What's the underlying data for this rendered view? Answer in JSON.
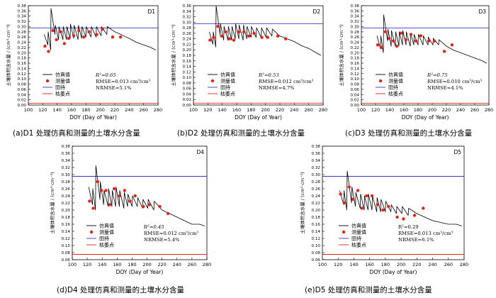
{
  "chart_data": [
    {
      "type": "line",
      "panel_label": "D1",
      "caption": "(a)D1 处理仿真和测量的土壤水分含量",
      "xlabel": "DOY (Day of Year)",
      "ylabel": "土壤体积含水量 / (cm³·cm⁻³)",
      "xlim": [
        100,
        280
      ],
      "ylim": [
        0.0,
        0.38
      ],
      "xticks": [
        100,
        120,
        140,
        160,
        180,
        200,
        220,
        240,
        260,
        280
      ],
      "yticks": [
        0.0,
        0.02,
        0.04,
        0.06,
        0.08,
        0.1,
        0.12,
        0.14,
        0.16,
        0.18,
        0.2,
        0.22,
        0.24,
        0.26,
        0.28,
        0.3,
        0.32,
        0.34,
        0.36,
        0.38
      ],
      "field_capacity": 0.295,
      "wilting_point": 0.007,
      "legend": [
        "仿真值",
        "测量值",
        "田持",
        "枯萎点"
      ],
      "stats": [
        "R²=0.65",
        "RMSE=0.013 cm³/cm³",
        "NRMSE=5.1%"
      ],
      "simulated": {
        "x": [
          122,
          127,
          127.5,
          131,
          131.5,
          137,
          137.5,
          142,
          142.5,
          148,
          148.5,
          153,
          153.5,
          158,
          158.5,
          163,
          163.5,
          169,
          169.5,
          174,
          174.5,
          180,
          180.5,
          187,
          187.5,
          194,
          194.5,
          201,
          201.5,
          209,
          209.5,
          220,
          230,
          240,
          250,
          260,
          270,
          277
        ],
        "y": [
          0.27,
          0.23,
          0.28,
          0.21,
          0.37,
          0.27,
          0.305,
          0.25,
          0.3,
          0.25,
          0.3,
          0.25,
          0.3,
          0.255,
          0.31,
          0.255,
          0.305,
          0.25,
          0.305,
          0.255,
          0.3,
          0.26,
          0.3,
          0.26,
          0.3,
          0.26,
          0.3,
          0.265,
          0.3,
          0.27,
          0.3,
          0.28,
          0.268,
          0.255,
          0.24,
          0.23,
          0.22,
          0.21
        ]
      },
      "measured": {
        "x": [
          123,
          128,
          134,
          139,
          145,
          150,
          156,
          163,
          170,
          177,
          184,
          195,
          203,
          217,
          228
        ],
        "y": [
          0.225,
          0.205,
          0.285,
          0.25,
          0.28,
          0.235,
          0.255,
          0.265,
          0.285,
          0.26,
          0.28,
          0.27,
          0.29,
          0.26,
          0.26
        ]
      }
    },
    {
      "type": "line",
      "panel_label": "D2",
      "caption": "(b)D2 处理仿真和测量的土壤水分含量",
      "xlabel": "DOY (Day of Year)",
      "ylabel": "土壤体积含水量 / (cm³·cm⁻³)",
      "xlim": [
        100,
        280
      ],
      "ylim": [
        0.0,
        0.36
      ],
      "xticks": [
        100,
        120,
        140,
        160,
        180,
        200,
        220,
        240,
        260,
        280
      ],
      "yticks": [
        0.0,
        0.02,
        0.04,
        0.06,
        0.08,
        0.1,
        0.12,
        0.14,
        0.16,
        0.18,
        0.2,
        0.22,
        0.24,
        0.26,
        0.28,
        0.3,
        0.32,
        0.34,
        0.36
      ],
      "field_capacity": 0.295,
      "wilting_point": 0.007,
      "legend": [
        "仿真值",
        "测量值",
        "田持",
        "枯萎点"
      ],
      "stats": [
        "R²=0.53",
        "RMSE=0.012 cm³/cm³",
        "NRMSE=4.7%"
      ],
      "simulated": {
        "x": [
          122,
          127,
          127.5,
          131,
          131.5,
          137,
          137.5,
          142,
          142.5,
          148,
          148.5,
          153,
          153.5,
          158,
          158.5,
          163,
          163.5,
          169,
          169.5,
          174,
          174.5,
          180,
          180.5,
          187,
          187.5,
          194,
          194.5,
          201,
          201.5,
          209,
          209.5,
          220,
          230,
          240,
          250,
          260,
          270,
          277
        ],
        "y": [
          0.265,
          0.22,
          0.265,
          0.21,
          0.36,
          0.255,
          0.295,
          0.235,
          0.285,
          0.235,
          0.285,
          0.235,
          0.285,
          0.24,
          0.295,
          0.24,
          0.29,
          0.235,
          0.29,
          0.24,
          0.285,
          0.245,
          0.285,
          0.245,
          0.28,
          0.245,
          0.28,
          0.245,
          0.28,
          0.25,
          0.275,
          0.25,
          0.24,
          0.23,
          0.215,
          0.205,
          0.19,
          0.18
        ]
      },
      "measured": {
        "x": [
          123,
          128,
          134,
          139,
          145,
          150,
          156,
          163,
          170,
          177,
          184,
          195,
          203,
          217,
          228
        ],
        "y": [
          0.235,
          0.245,
          0.285,
          0.25,
          0.265,
          0.24,
          0.235,
          0.265,
          0.265,
          0.25,
          0.26,
          0.245,
          0.245,
          0.25,
          0.24
        ]
      }
    },
    {
      "type": "line",
      "panel_label": "D3",
      "caption": "(c)D3 处理仿真和测量的土壤水分含量",
      "xlabel": "DOY (Day of Year)",
      "ylabel": "土壤体积含水量 / (cm³·cm⁻³)",
      "xlim": [
        100,
        280
      ],
      "ylim": [
        0.0,
        0.38
      ],
      "xticks": [
        100,
        120,
        140,
        160,
        180,
        200,
        220,
        240,
        260,
        280
      ],
      "yticks": [
        0.0,
        0.02,
        0.04,
        0.06,
        0.08,
        0.1,
        0.12,
        0.14,
        0.16,
        0.18,
        0.2,
        0.22,
        0.24,
        0.26,
        0.28,
        0.3,
        0.32,
        0.34,
        0.36,
        0.38
      ],
      "field_capacity": 0.295,
      "wilting_point": 0.007,
      "legend": [
        "仿真值",
        "测量值",
        "田持",
        "枯萎点"
      ],
      "stats": [
        "R²=0.75",
        "RMSE=0.010 cm³/cm³",
        "NRMSE=4.1%"
      ],
      "simulated": {
        "x": [
          122,
          127,
          127.5,
          131,
          131.5,
          137,
          137.5,
          142,
          142.5,
          148,
          148.5,
          153,
          153.5,
          158,
          158.5,
          163,
          163.5,
          169,
          169.5,
          174,
          174.5,
          180,
          180.5,
          187,
          187.5,
          194,
          194.5,
          201,
          201.5,
          209,
          209.5,
          220,
          230,
          240,
          250,
          260,
          270,
          277
        ],
        "y": [
          0.265,
          0.215,
          0.265,
          0.2,
          0.345,
          0.245,
          0.29,
          0.225,
          0.285,
          0.225,
          0.28,
          0.225,
          0.28,
          0.23,
          0.285,
          0.23,
          0.28,
          0.225,
          0.275,
          0.23,
          0.27,
          0.23,
          0.27,
          0.23,
          0.265,
          0.23,
          0.26,
          0.23,
          0.255,
          0.23,
          0.25,
          0.225,
          0.21,
          0.2,
          0.19,
          0.18,
          0.17,
          0.16
        ]
      },
      "measured": {
        "x": [
          123,
          128,
          134,
          139,
          145,
          150,
          156,
          163,
          170,
          177,
          184,
          195,
          203,
          217,
          228
        ],
        "y": [
          0.23,
          0.22,
          0.28,
          0.255,
          0.245,
          0.225,
          0.275,
          0.25,
          0.27,
          0.245,
          0.265,
          0.245,
          0.245,
          0.205,
          0.23
        ]
      }
    },
    {
      "type": "line",
      "panel_label": "D4",
      "caption": "(d)D4 处理仿真和测量的土壤水分含量",
      "xlabel": "DOY (Day of Year)",
      "ylabel": "土壤体积含水量 / (cm³·cm⁻³)",
      "xlim": [
        100,
        280
      ],
      "ylim": [
        0.06,
        0.38
      ],
      "xticks": [
        100,
        120,
        140,
        160,
        180,
        200,
        220,
        240,
        260,
        280
      ],
      "yticks": [
        0.06,
        0.08,
        0.1,
        0.12,
        0.14,
        0.16,
        0.18,
        0.2,
        0.22,
        0.24,
        0.26,
        0.28,
        0.3,
        0.32,
        0.34,
        0.36,
        0.38
      ],
      "field_capacity": 0.295,
      "wilting_point": 0.075,
      "legend": [
        "仿真值",
        "测量值",
        "田持",
        "枯萎点"
      ],
      "stats": [
        "R²=0.45",
        "RMSE=0.012 cm³/cm³",
        "NRMSE=5.4%"
      ],
      "simulated": {
        "x": [
          122,
          127,
          127.5,
          131,
          131.5,
          137,
          137.5,
          142,
          142.5,
          148,
          148.5,
          153,
          153.5,
          158,
          158.5,
          163,
          163.5,
          169,
          169.5,
          174,
          174.5,
          180,
          180.5,
          187,
          187.5,
          194,
          194.5,
          201,
          201.5,
          209,
          209.5,
          220,
          230,
          240,
          250,
          260,
          270,
          277
        ],
        "y": [
          0.265,
          0.215,
          0.26,
          0.2,
          0.325,
          0.23,
          0.28,
          0.215,
          0.255,
          0.21,
          0.26,
          0.21,
          0.255,
          0.21,
          0.265,
          0.21,
          0.255,
          0.205,
          0.25,
          0.21,
          0.245,
          0.21,
          0.24,
          0.21,
          0.235,
          0.205,
          0.23,
          0.205,
          0.23,
          0.2,
          0.225,
          0.2,
          0.19,
          0.18,
          0.17,
          0.16,
          0.16,
          0.155
        ]
      },
      "measured": {
        "x": [
          123,
          128,
          134,
          139,
          145,
          150,
          156,
          163,
          170,
          177,
          184,
          195,
          203,
          217,
          228
        ],
        "y": [
          0.225,
          0.205,
          0.28,
          0.255,
          0.255,
          0.215,
          0.26,
          0.24,
          0.255,
          0.225,
          0.24,
          0.21,
          0.215,
          0.21,
          0.19
        ]
      }
    },
    {
      "type": "line",
      "panel_label": "D5",
      "caption": "(e)D5 处理仿真和测量的土壤水分含量",
      "xlabel": "DOY (Day of Year)",
      "ylabel": "土壤体积含水量 / (cm³·cm⁻³)",
      "xlim": [
        100,
        280
      ],
      "ylim": [
        0.06,
        0.38
      ],
      "xticks": [
        100,
        120,
        140,
        160,
        180,
        200,
        220,
        240,
        260,
        280
      ],
      "yticks": [
        0.06,
        0.08,
        0.1,
        0.12,
        0.14,
        0.16,
        0.18,
        0.2,
        0.22,
        0.24,
        0.26,
        0.28,
        0.3,
        0.32,
        0.34,
        0.36,
        0.38
      ],
      "field_capacity": 0.295,
      "wilting_point": 0.075,
      "legend": [
        "仿真值",
        "测量值",
        "田持",
        "枯萎点"
      ],
      "stats": [
        "R²=0.29",
        "RMSE=0.013 cm³/cm³",
        "NRMSE=6.1%"
      ],
      "simulated": {
        "x": [
          122,
          127,
          127.5,
          131,
          131.5,
          137,
          137.5,
          142,
          142.5,
          148,
          148.5,
          153,
          153.5,
          158,
          158.5,
          163,
          163.5,
          169,
          169.5,
          174,
          174.5,
          180,
          180.5,
          187,
          187.5,
          194,
          194.5,
          201,
          201.5,
          209,
          209.5,
          220,
          230,
          240,
          250,
          260,
          270,
          277
        ],
        "y": [
          0.255,
          0.215,
          0.255,
          0.2,
          0.31,
          0.22,
          0.265,
          0.21,
          0.25,
          0.205,
          0.245,
          0.2,
          0.24,
          0.2,
          0.245,
          0.2,
          0.24,
          0.195,
          0.235,
          0.195,
          0.23,
          0.195,
          0.225,
          0.195,
          0.215,
          0.19,
          0.21,
          0.19,
          0.21,
          0.185,
          0.205,
          0.19,
          0.18,
          0.17,
          0.165,
          0.16,
          0.16,
          0.155
        ]
      },
      "measured": {
        "x": [
          123,
          128,
          134,
          139,
          145,
          150,
          156,
          163,
          170,
          177,
          184,
          195,
          203,
          217,
          228
        ],
        "y": [
          0.245,
          0.22,
          0.265,
          0.23,
          0.255,
          0.205,
          0.24,
          0.24,
          0.215,
          0.2,
          0.21,
          0.18,
          0.175,
          0.185,
          0.205
        ]
      }
    }
  ],
  "colors": {
    "simulated": "#000000",
    "measured": "#e2231a",
    "field_capacity": "#3535c8",
    "wilting_point": "#e2231a",
    "axis": "#000000"
  }
}
